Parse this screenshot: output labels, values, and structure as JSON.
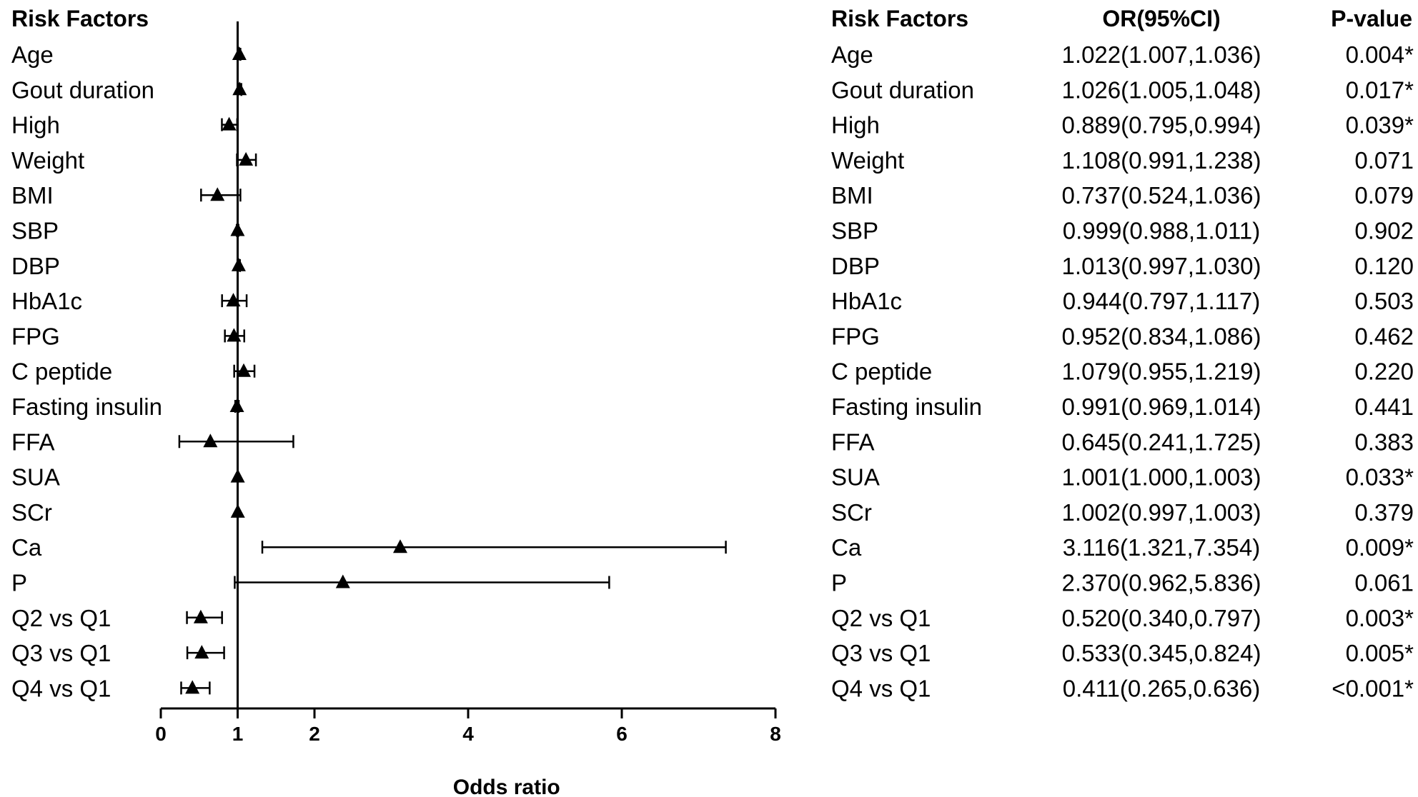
{
  "left_header": "Risk Factors",
  "right_headers": {
    "factor": "Risk Factors",
    "or": "OR(95%CI)",
    "p": "P-value"
  },
  "chart_data": {
    "type": "forest",
    "xlabel": "Odds ratio",
    "xlim": [
      0,
      8
    ],
    "xticks": [
      0,
      1,
      2,
      4,
      6,
      8
    ],
    "reference_line": 1,
    "rows": [
      {
        "label": "Age",
        "or": 1.022,
        "lo": 1.007,
        "hi": 1.036,
        "or_text": "1.022(1.007,1.036)",
        "p_text": "0.004*"
      },
      {
        "label": "Gout duration",
        "or": 1.026,
        "lo": 1.005,
        "hi": 1.048,
        "or_text": "1.026(1.005,1.048)",
        "p_text": "0.017*"
      },
      {
        "label": "High",
        "or": 0.889,
        "lo": 0.795,
        "hi": 0.994,
        "or_text": "0.889(0.795,0.994)",
        "p_text": "0.039*"
      },
      {
        "label": "Weight",
        "or": 1.108,
        "lo": 0.991,
        "hi": 1.238,
        "or_text": "1.108(0.991,1.238)",
        "p_text": "0.071"
      },
      {
        "label": "BMI",
        "or": 0.737,
        "lo": 0.524,
        "hi": 1.036,
        "or_text": "0.737(0.524,1.036)",
        "p_text": "0.079"
      },
      {
        "label": "SBP",
        "or": 0.999,
        "lo": 0.988,
        "hi": 1.011,
        "or_text": "0.999(0.988,1.011)",
        "p_text": "0.902"
      },
      {
        "label": "DBP",
        "or": 1.013,
        "lo": 0.997,
        "hi": 1.03,
        "or_text": "1.013(0.997,1.030)",
        "p_text": "0.120"
      },
      {
        "label": "HbA1c",
        "or": 0.944,
        "lo": 0.797,
        "hi": 1.117,
        "or_text": "0.944(0.797,1.117)",
        "p_text": "0.503"
      },
      {
        "label": "FPG",
        "or": 0.952,
        "lo": 0.834,
        "hi": 1.086,
        "or_text": "0.952(0.834,1.086)",
        "p_text": "0.462"
      },
      {
        "label": "C peptide",
        "or": 1.079,
        "lo": 0.955,
        "hi": 1.219,
        "or_text": "1.079(0.955,1.219)",
        "p_text": "0.220"
      },
      {
        "label": "Fasting insulin",
        "or": 0.991,
        "lo": 0.969,
        "hi": 1.014,
        "or_text": "0.991(0.969,1.014)",
        "p_text": "0.441"
      },
      {
        "label": "FFA",
        "or": 0.645,
        "lo": 0.241,
        "hi": 1.725,
        "or_text": "0.645(0.241,1.725)",
        "p_text": "0.383"
      },
      {
        "label": "SUA",
        "or": 1.001,
        "lo": 1.0,
        "hi": 1.003,
        "or_text": "1.001(1.000,1.003)",
        "p_text": "0.033*"
      },
      {
        "label": "SCr",
        "or": 1.002,
        "lo": 0.997,
        "hi": 1.003,
        "or_text": "1.002(0.997,1.003)",
        "p_text": "0.379"
      },
      {
        "label": "Ca",
        "or": 3.116,
        "lo": 1.321,
        "hi": 7.354,
        "or_text": "3.116(1.321,7.354)",
        "p_text": "0.009*"
      },
      {
        "label": "P",
        "or": 2.37,
        "lo": 0.962,
        "hi": 5.836,
        "or_text": "2.370(0.962,5.836)",
        "p_text": "0.061"
      },
      {
        "label": "Q2 vs Q1",
        "or": 0.52,
        "lo": 0.34,
        "hi": 0.797,
        "or_text": "0.520(0.340,0.797)",
        "p_text": "0.003*"
      },
      {
        "label": "Q3 vs Q1",
        "or": 0.533,
        "lo": 0.345,
        "hi": 0.824,
        "or_text": "0.533(0.345,0.824)",
        "p_text": "0.005*"
      },
      {
        "label": "Q4 vs Q1",
        "or": 0.411,
        "lo": 0.265,
        "hi": 0.636,
        "or_text": "0.411(0.265,0.636)",
        "p_text": "<0.001*"
      }
    ]
  }
}
